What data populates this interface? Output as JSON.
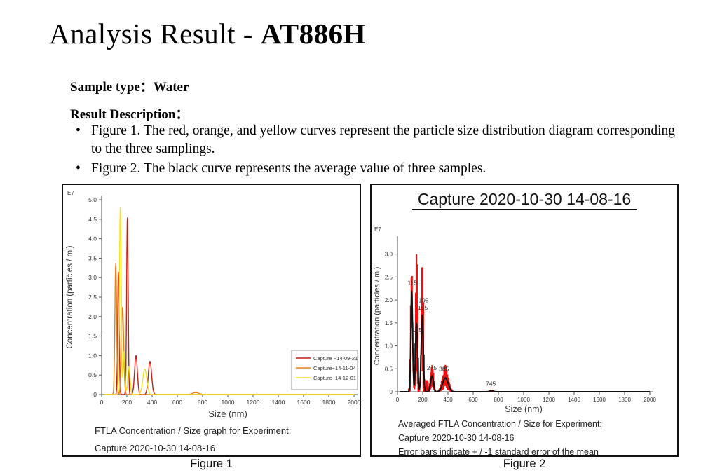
{
  "page": {
    "title_prefix": "Analysis Result - ",
    "title_code": "AT886H",
    "sample_type_label": "Sample type：",
    "sample_type_value": "Water",
    "result_heading": "Result Description：",
    "bullets": [
      "Figure 1. The red, orange, and yellow curves represent the particle size distribution diagram corresponding to the three samplings.",
      "Figure 2. The black curve represents the average value of three samples."
    ],
    "figure1_caption": "Figure 1",
    "figure2_caption": "Figure 2"
  },
  "chart_data": [
    {
      "type": "line",
      "title": "",
      "xlabel": "Size (nm)",
      "ylabel": "Concentration (particles / ml)",
      "y_scale_label": "E7",
      "xlim": [
        0,
        2000
      ],
      "ylim": [
        0,
        5.0
      ],
      "x_ticks": [
        0,
        200,
        400,
        600,
        800,
        1000,
        1200,
        1400,
        1600,
        1800,
        2000
      ],
      "y_ticks": [
        0,
        0.5,
        1.0,
        1.5,
        2.0,
        2.5,
        3.0,
        3.5,
        4.0,
        4.5,
        5.0
      ],
      "grid": false,
      "legend_position": "right-lower",
      "series": [
        {
          "name": "Capture ~14-09-21",
          "color": "#c22014",
          "peaks": [
            {
              "x": 133,
              "y": 3.15,
              "w": 6
            },
            {
              "x": 204,
              "y": 4.6,
              "w": 6
            },
            {
              "x": 272,
              "y": 1.0,
              "w": 11
            },
            {
              "x": 383,
              "y": 0.85,
              "w": 13
            }
          ]
        },
        {
          "name": "Capture~14-11-04",
          "color": "#e0821c",
          "peaks": [
            {
              "x": 112,
              "y": 3.38,
              "w": 7
            },
            {
              "x": 166,
              "y": 2.25,
              "w": 9
            },
            {
              "x": 745,
              "y": 0.05,
              "w": 25
            }
          ]
        },
        {
          "name": "Capture~14-12-01",
          "color": "#f2e227",
          "peaks": [
            {
              "x": 148,
              "y": 4.8,
              "w": 7
            },
            {
              "x": 178,
              "y": 1.1,
              "w": 7
            },
            {
              "x": 216,
              "y": 0.72,
              "w": 9
            },
            {
              "x": 342,
              "y": 0.65,
              "w": 16
            }
          ]
        }
      ],
      "caption_lines": [
        "FTLA Concentration / Size graph for Experiment:",
        "Capture 2020-10-30 14-08-16"
      ]
    },
    {
      "type": "line_error",
      "title": "Capture 2020-10-30 14-08-16",
      "xlabel": "Size (nm)",
      "ylabel": "Concentration (particles / ml)",
      "y_scale_label": "E7",
      "xlim": [
        0,
        2000
      ],
      "ylim": [
        0,
        3.3
      ],
      "x_ticks": [
        0,
        200,
        400,
        600,
        800,
        1000,
        1200,
        1400,
        1600,
        1800,
        2000
      ],
      "y_ticks": [
        0,
        0.5,
        1.0,
        1.5,
        2.0,
        2.5,
        3.0
      ],
      "grid": false,
      "series": [
        {
          "name": "Average of three samples",
          "color": "#111111",
          "peaks": [
            {
              "x": 113,
              "y": 2.2,
              "w": 7
            },
            {
              "x": 151,
              "y": 1.5,
              "w": 8
            },
            {
              "x": 196,
              "y": 1.68,
              "w": 8
            },
            {
              "x": 274,
              "y": 0.35,
              "w": 11
            },
            {
              "x": 380,
              "y": 0.3,
              "w": 22
            },
            {
              "x": 745,
              "y": 0.02,
              "w": 15
            }
          ]
        }
      ],
      "error_band": {
        "color": "#ee1111",
        "half_width_peaks": [
          {
            "x": 108,
            "y": 0.8,
            "w": 8
          },
          {
            "x": 152,
            "y": 1.55,
            "w": 9
          },
          {
            "x": 200,
            "y": 1.5,
            "w": 8
          },
          {
            "x": 235,
            "y": 0.3,
            "w": 8
          },
          {
            "x": 274,
            "y": 0.3,
            "w": 12
          },
          {
            "x": 380,
            "y": 0.28,
            "w": 24
          },
          {
            "x": 745,
            "y": 0.03,
            "w": 18
          }
        ]
      },
      "peak_label_color": "#4444bb",
      "peak_labels": [
        {
          "x": 118,
          "y": 2.33,
          "label": "115"
        },
        {
          "x": 208,
          "y": 1.95,
          "label": "195"
        },
        {
          "x": 200,
          "y": 1.79,
          "label": "155"
        },
        {
          "x": 155,
          "y": 1.3,
          "label": "135"
        },
        {
          "x": 272,
          "y": 0.47,
          "label": "275"
        },
        {
          "x": 368,
          "y": 0.45,
          "label": "385"
        },
        {
          "x": 740,
          "y": 0.13,
          "label": "745"
        }
      ],
      "caption_lines": [
        "Averaged FTLA Concentration / Size for Experiment:",
        "Capture 2020-10-30 14-08-16",
        "Error bars indicate + / -1 standard error of the mean"
      ]
    }
  ]
}
